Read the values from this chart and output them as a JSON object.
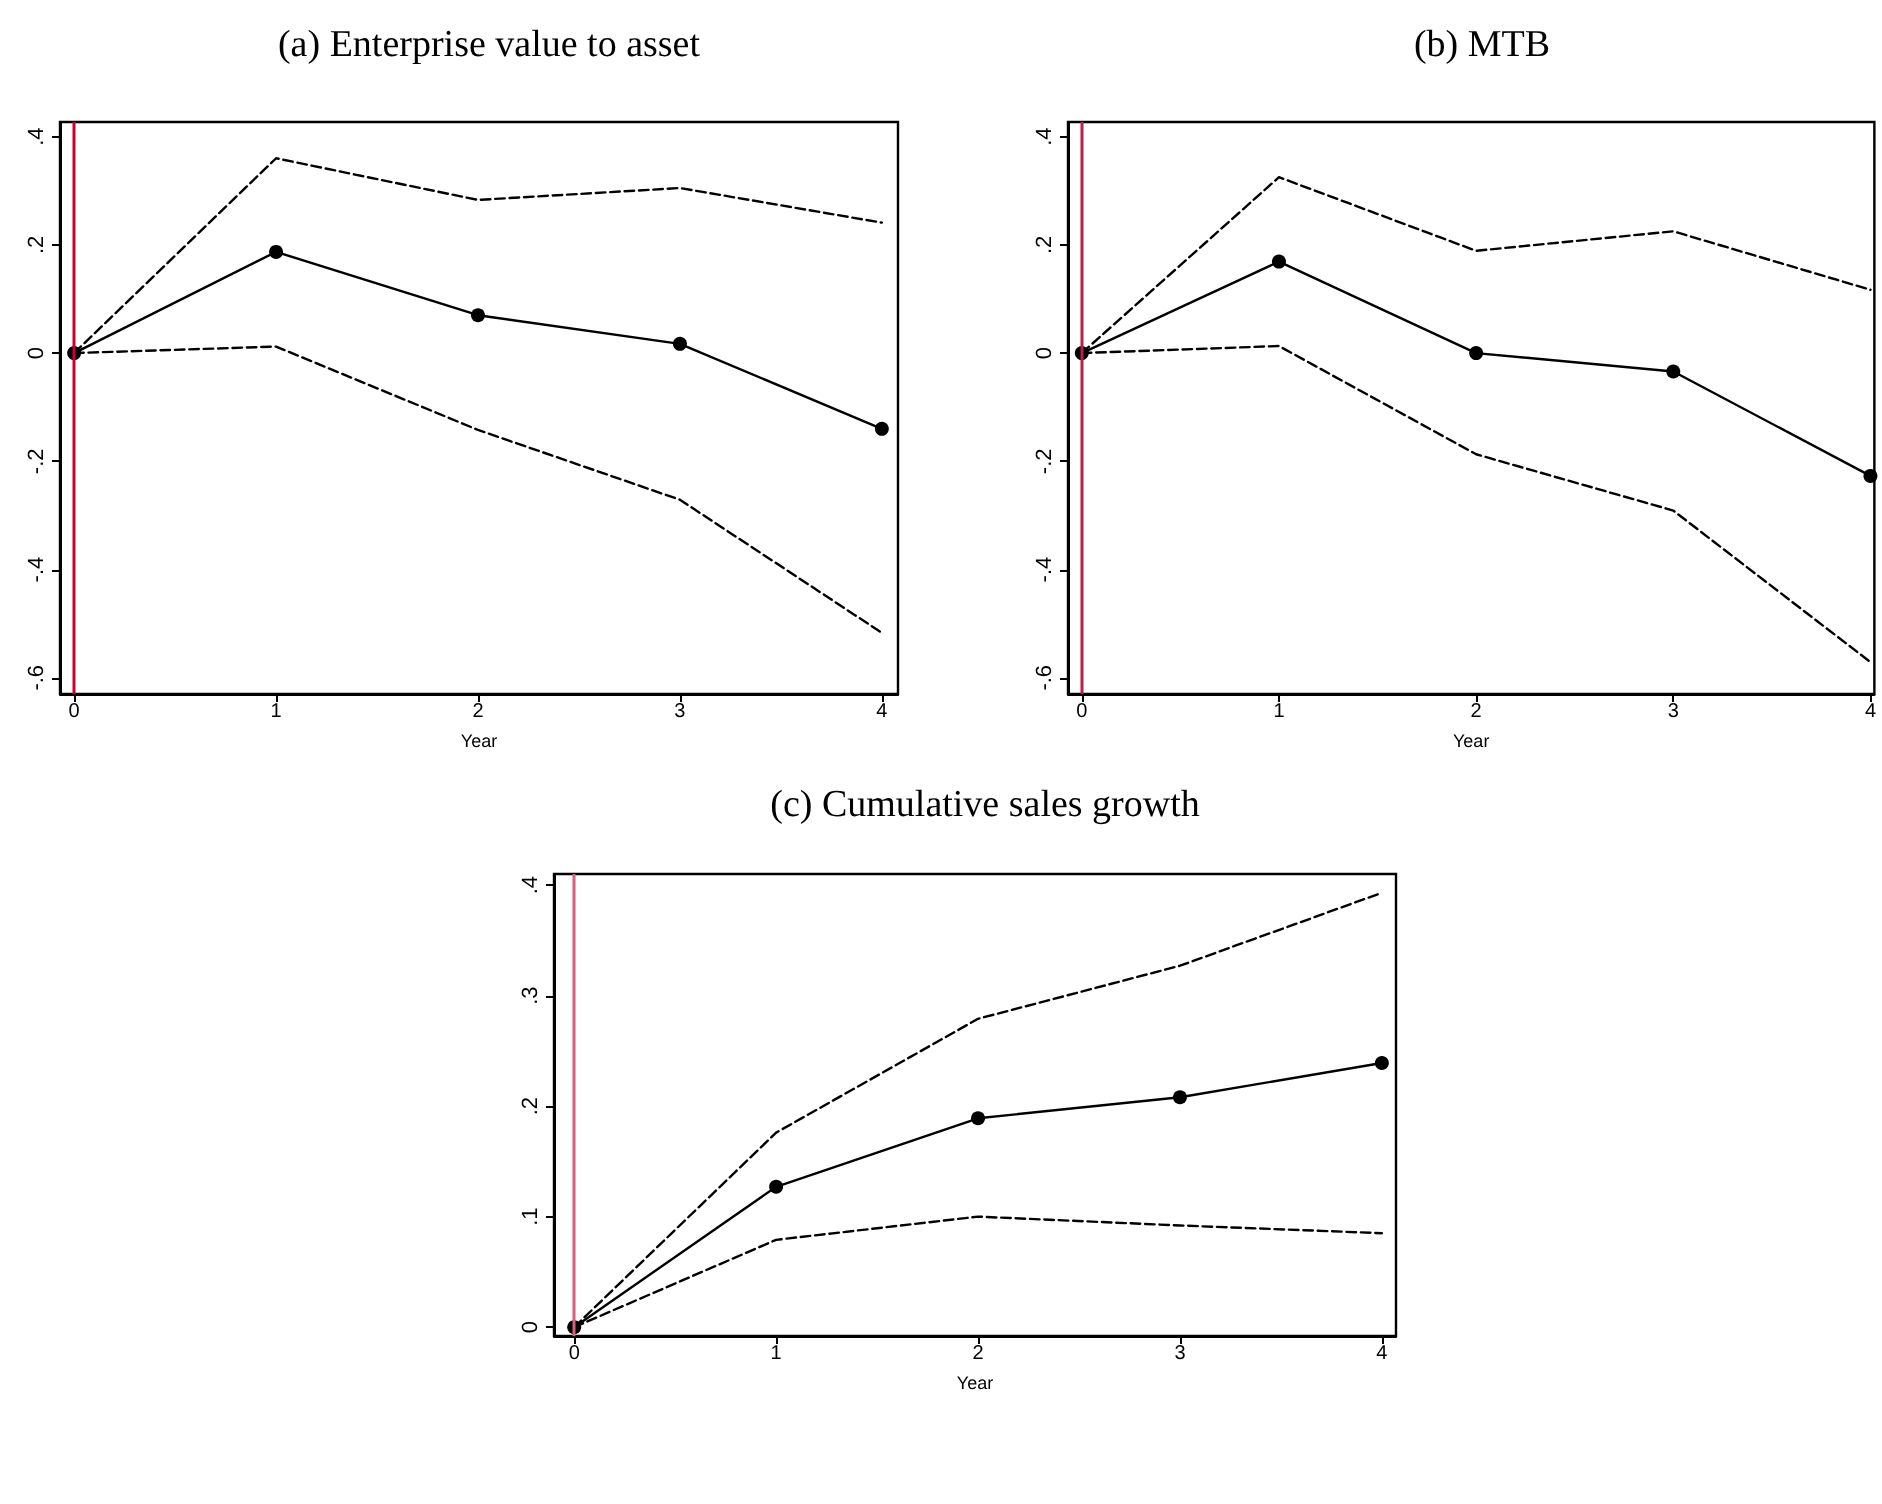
{
  "chart_data": [
    {
      "type": "line",
      "title": "(a) Enterprise value to asset",
      "xlabel": "Year",
      "x": [
        0,
        1,
        2,
        3,
        4
      ],
      "xlim": [
        -0.07,
        4.08
      ],
      "xticks": [
        0,
        1,
        2,
        3,
        4
      ],
      "ylim": [
        -0.63,
        0.427
      ],
      "yticks": [
        {
          "value": -0.6,
          "label": "-.6"
        },
        {
          "value": -0.4,
          "label": "-.4"
        },
        {
          "value": -0.2,
          "label": "-.2"
        },
        {
          "value": 0,
          "label": "0"
        },
        {
          "value": 0.2,
          "label": ".2"
        },
        {
          "value": 0.4,
          "label": ".4"
        }
      ],
      "grid": false,
      "series": [
        {
          "color": "#000000",
          "marker": "circle",
          "line_style": "solid",
          "values": [
            0,
            0.187,
            0.07,
            0.017,
            -0.14
          ]
        },
        {
          "color": "#000000",
          "marker": "none",
          "line_style": "dashed",
          "values": [
            0,
            0.36,
            0.283,
            0.305,
            0.241
          ]
        },
        {
          "color": "#000000",
          "marker": "none",
          "line_style": "dashed",
          "values": [
            0,
            0.012,
            -0.142,
            -0.271,
            -0.517
          ]
        }
      ],
      "ref_lines": [
        {
          "axis": "x",
          "value": 0,
          "color": "#cc0033",
          "line_style": "solid"
        }
      ]
    },
    {
      "type": "line",
      "title": "(b) MTB",
      "xlabel": "Year",
      "x": [
        0,
        1,
        2,
        3,
        4
      ],
      "xlim": [
        -0.07,
        4.02
      ],
      "xticks": [
        0,
        1,
        2,
        3,
        4
      ],
      "ylim": [
        -0.63,
        0.427
      ],
      "yticks": [
        {
          "value": -0.6,
          "label": "-.6"
        },
        {
          "value": -0.4,
          "label": "-.4"
        },
        {
          "value": -0.2,
          "label": "-.2"
        },
        {
          "value": 0,
          "label": "0"
        },
        {
          "value": 0.2,
          "label": ".2"
        },
        {
          "value": 0.4,
          "label": ".4"
        }
      ],
      "grid": false,
      "series": [
        {
          "color": "#000000",
          "marker": "circle",
          "line_style": "solid",
          "values": [
            0,
            0.169,
            0,
            -0.034,
            -0.227
          ]
        },
        {
          "color": "#000000",
          "marker": "none",
          "line_style": "dashed",
          "values": [
            0,
            0.325,
            0.189,
            0.225,
            0.117
          ]
        },
        {
          "color": "#000000",
          "marker": "none",
          "line_style": "dashed",
          "values": [
            0,
            0.013,
            -0.187,
            -0.291,
            -0.571
          ]
        }
      ],
      "ref_lines": [
        {
          "axis": "x",
          "value": 0,
          "color": "#b8204a",
          "line_style": "solid"
        }
      ]
    },
    {
      "type": "line",
      "title": "(c) Cumulative sales growth",
      "xlabel": "Year",
      "x": [
        0,
        1,
        2,
        3,
        4
      ],
      "xlim": [
        -0.1,
        4.07
      ],
      "xticks": [
        0,
        1,
        2,
        3,
        4
      ],
      "ylim": [
        -0.008,
        0.41
      ],
      "yticks": [
        {
          "value": 0,
          "label": "0"
        },
        {
          "value": 0.1,
          "label": ".1"
        },
        {
          "value": 0.2,
          "label": ".2"
        },
        {
          "value": 0.3,
          "label": ".3"
        },
        {
          "value": 0.4,
          "label": ".4"
        }
      ],
      "grid": false,
      "series": [
        {
          "color": "#000000",
          "marker": "circle",
          "line_style": "solid",
          "values": [
            0,
            0.127,
            0.189,
            0.208,
            0.239
          ]
        },
        {
          "color": "#000000",
          "marker": "none",
          "line_style": "dashed",
          "values": [
            0,
            0.176,
            0.279,
            0.327,
            0.393
          ]
        },
        {
          "color": "#000000",
          "marker": "none",
          "line_style": "dashed",
          "values": [
            0,
            0.079,
            0.1,
            0.092,
            0.085
          ]
        }
      ],
      "ref_lines": [
        {
          "axis": "x",
          "value": 0,
          "color": "#d8607f",
          "line_style": "solid"
        }
      ]
    }
  ]
}
